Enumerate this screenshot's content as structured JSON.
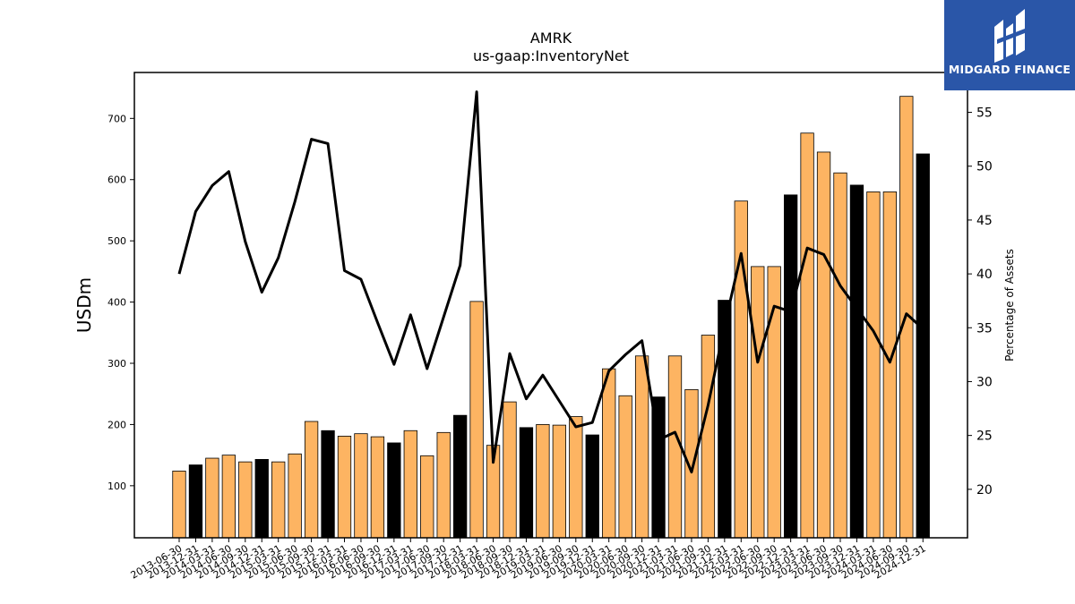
{
  "chart_data": {
    "type": "bar",
    "title": "AMRK",
    "subtitle": "us-gaap:InventoryNet",
    "ylabel": "USDm",
    "y2label": "Percentage of Assets",
    "ylim": [
      15,
      775
    ],
    "y2lim": [
      15.5,
      58.7
    ],
    "yticks": [
      100,
      200,
      300,
      400,
      500,
      600,
      700
    ],
    "y2ticks": [
      20,
      25,
      30,
      35,
      40,
      45,
      50,
      55
    ],
    "categories": [
      "2013-06-30",
      "2013-12-31",
      "2014-03-31",
      "2014-06-30",
      "2014-09-30",
      "2014-12-31",
      "2015-03-31",
      "2015-06-30",
      "2015-09-30",
      "2015-12-31",
      "2016-03-31",
      "2016-06-30",
      "2016-09-30",
      "2016-12-31",
      "2017-03-31",
      "2017-06-30",
      "2017-09-30",
      "2017-12-31",
      "2018-03-31",
      "2018-06-30",
      "2018-09-30",
      "2018-12-31",
      "2019-03-31",
      "2019-06-30",
      "2019-09-30",
      "2019-12-31",
      "2020-03-31",
      "2020-06-30",
      "2020-09-30",
      "2020-12-31",
      "2021-03-31",
      "2021-06-30",
      "2021-09-30",
      "2021-12-31",
      "2022-03-31",
      "2022-06-30",
      "2022-09-30",
      "2022-12-31",
      "2023-03-31",
      "2023-06-30",
      "2023-09-30",
      "2023-12-31",
      "2024-03-31",
      "2024-06-30",
      "2024-09-30",
      "2024-12-31"
    ],
    "series": [
      {
        "kind": "bar",
        "values": [
          124,
          134,
          145,
          150,
          139,
          143,
          139,
          152,
          205,
          190,
          181,
          185,
          180,
          170,
          190,
          149,
          187,
          215,
          401,
          166,
          237,
          195,
          200,
          199,
          213,
          183,
          291,
          247,
          312,
          245,
          312,
          257,
          346,
          403,
          565,
          458,
          458,
          575,
          676,
          645,
          611,
          591,
          580,
          580,
          736,
          642
        ],
        "highlight": [
          false,
          true,
          false,
          false,
          false,
          true,
          false,
          false,
          false,
          true,
          false,
          false,
          false,
          true,
          false,
          false,
          false,
          true,
          false,
          false,
          false,
          true,
          false,
          false,
          false,
          true,
          false,
          false,
          false,
          true,
          false,
          false,
          false,
          true,
          false,
          false,
          false,
          true,
          false,
          false,
          false,
          true,
          false,
          false,
          false,
          true
        ]
      },
      {
        "kind": "line",
        "values": [
          40.0,
          45.8,
          48.2,
          49.5,
          43.0,
          38.3,
          41.5,
          46.7,
          52.5,
          52.1,
          40.3,
          39.5,
          35.5,
          31.6,
          36.2,
          31.2,
          36.0,
          40.8,
          56.9,
          22.5,
          32.6,
          28.4,
          30.6,
          28.2,
          25.8,
          26.2,
          31.0,
          32.5,
          33.8,
          24.6,
          25.3,
          21.6,
          27.8,
          35.2,
          41.9,
          31.8,
          37.0,
          36.5,
          42.4,
          41.8,
          38.9,
          36.8,
          34.7,
          31.8,
          36.3,
          34.9
        ]
      }
    ],
    "colors": {
      "bar": "#fdb462",
      "highlight_bar": "#000000",
      "line": "#000000"
    }
  },
  "logo": {
    "name": "MIDGARD FINANCE"
  }
}
